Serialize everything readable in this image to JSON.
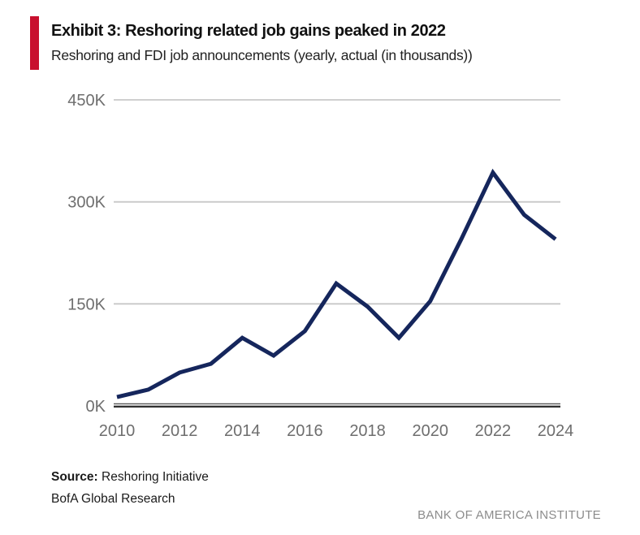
{
  "exhibit": {
    "title": "Exhibit 3: Reshoring related job gains peaked in 2022",
    "subtitle": "Reshoring and FDI job announcements (yearly, actual (in thousands))"
  },
  "footer": {
    "source_label": "Source:",
    "source_text": "Reshoring Initiative",
    "source_line2": "BofA Global Research",
    "brand": "BANK OF AMERICA INSTITUTE"
  },
  "colors": {
    "accent_red": "#C8102E",
    "line_navy": "#15265C",
    "gridline": "#C8C8C8",
    "axis_dark": "#2F2F2F",
    "axis_mid": "#555555",
    "tick_text": "#6E6E6E",
    "brand_text": "#8C8C8C"
  },
  "chart_data": {
    "type": "line",
    "title": "Exhibit 3: Reshoring related job gains peaked in 2022",
    "subtitle": "Reshoring and FDI job announcements (yearly, actual (in thousands))",
    "xlabel": "",
    "ylabel": "",
    "x": [
      2010,
      2011,
      2012,
      2013,
      2014,
      2015,
      2016,
      2017,
      2018,
      2019,
      2020,
      2021,
      2022,
      2023,
      2024
    ],
    "series": [
      {
        "name": "Reshoring and FDI job announcements (thousands)",
        "values": [
          13,
          24,
          49,
          62,
          100,
          74,
          110,
          180,
          146,
          100,
          154,
          246,
          343,
          281,
          245
        ]
      }
    ],
    "ylim": [
      0,
      450
    ],
    "yticks": [
      {
        "value": 0,
        "label": "0K"
      },
      {
        "value": 150,
        "label": "150K"
      },
      {
        "value": 300,
        "label": "300K"
      },
      {
        "value": 450,
        "label": "450K"
      }
    ],
    "xtick_labels": [
      "2010",
      "2012",
      "2014",
      "2016",
      "2018",
      "2020",
      "2022",
      "2024"
    ],
    "grid": "horizontal",
    "legend": "none"
  }
}
